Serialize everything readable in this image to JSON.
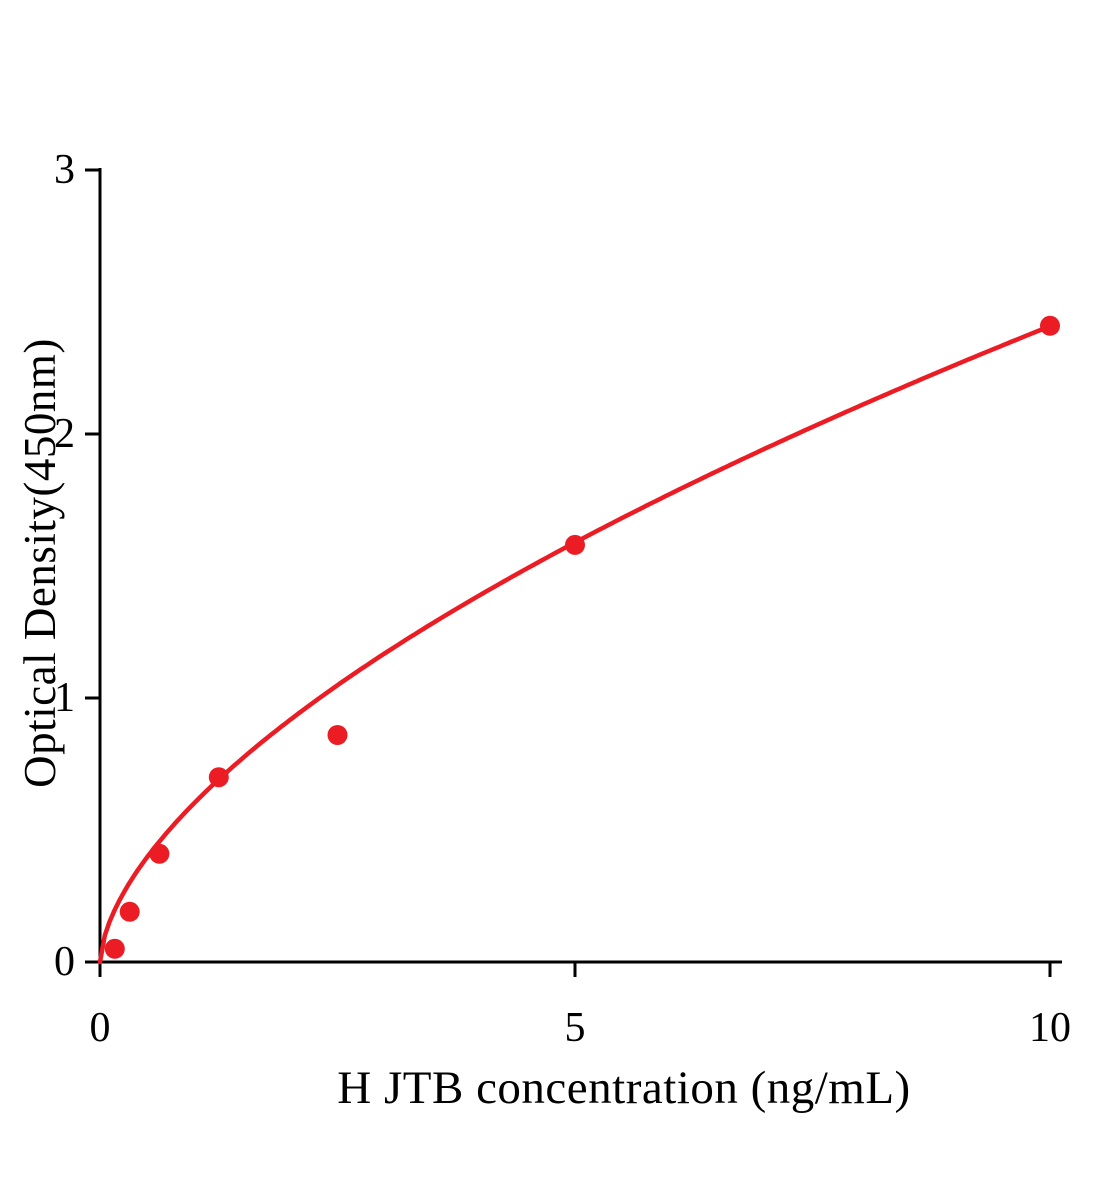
{
  "chart_data": {
    "type": "scatter",
    "title": "",
    "xlabel": "H JTB concentration (ng/mL)",
    "ylabel": "Optical Density(450nm)",
    "x": [
      0.156,
      0.3125,
      0.625,
      1.25,
      2.5,
      5,
      10
    ],
    "y": [
      0.05,
      0.19,
      0.41,
      0.7,
      0.86,
      1.58,
      2.41
    ],
    "xlim": [
      0,
      10
    ],
    "ylim": [
      0,
      3
    ],
    "x_ticks": [
      0,
      5,
      10
    ],
    "y_ticks": [
      0,
      1,
      2,
      3
    ],
    "grid": false,
    "legend": "none",
    "point_color": "#ec1c24",
    "curve_color": "#ec1c24",
    "axis_color": "#000000",
    "fit": {
      "type": "power",
      "a": 0.605,
      "b": 0.6
    },
    "description": "ELISA standard curve: optical density at 450nm versus H JTB concentration with power-law fitted curve through red data points"
  }
}
